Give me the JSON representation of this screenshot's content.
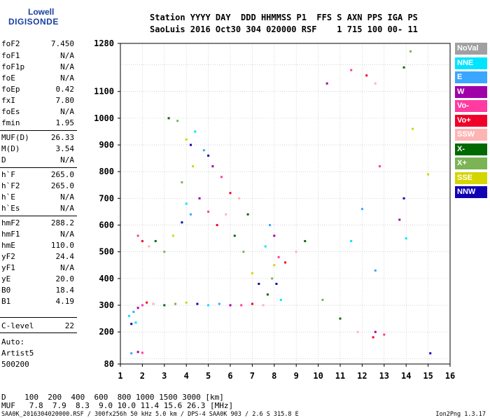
{
  "logo": {
    "line1": "Lowell",
    "line2": "DIGISONDE"
  },
  "header": {
    "line1": "Station YYYY DAY  DDD HHMMSS P1  FFS S AXN PPS IGA PS",
    "line2": "SaoLuis 2016 Oct30 304 020000 RSF    1 715 100 00- 11"
  },
  "params": [
    {
      "name": "foF2",
      "value": "7.450"
    },
    {
      "name": "foF1",
      "value": "N/A"
    },
    {
      "name": "foF1p",
      "value": "N/A"
    },
    {
      "name": "foE",
      "value": "N/A"
    },
    {
      "name": "foEp",
      "value": "0.42"
    },
    {
      "name": "fxI",
      "value": "7.80"
    },
    {
      "name": "foEs",
      "value": "N/A"
    },
    {
      "name": "fmin",
      "value": "1.95"
    },
    {
      "name": "MUF(D)",
      "value": "26.33"
    },
    {
      "name": "M(D)",
      "value": "3.54"
    },
    {
      "name": "D",
      "value": "N/A"
    },
    {
      "name": "h`F",
      "value": "265.0"
    },
    {
      "name": "h`F2",
      "value": "265.0"
    },
    {
      "name": "h`E",
      "value": "N/A"
    },
    {
      "name": "h`Es",
      "value": "N/A"
    },
    {
      "name": "hmF2",
      "value": "288.2"
    },
    {
      "name": "hmF1",
      "value": "N/A"
    },
    {
      "name": "hmE",
      "value": "110.0"
    },
    {
      "name": "yF2",
      "value": "24.4"
    },
    {
      "name": "yF1",
      "value": "N/A"
    },
    {
      "name": "yE",
      "value": "20.0"
    },
    {
      "name": "B0",
      "value": "18.4"
    },
    {
      "name": "B1",
      "value": "4.19"
    },
    {
      "name": "C-level",
      "value": "22"
    }
  ],
  "misc": {
    "line1": "Auto:",
    "line2": "Artist5",
    "line3": "500200"
  },
  "footer": {
    "d_row": "D    100  200  400  600  800 1000 1500 3000 [km]",
    "muf_row": "MUF   7.8  7.9  8.3  9.0 10.0 11.4 15.6 26.3 [MHz]",
    "file_line": "SAA0K_2016304020000.RSF / 300fx256h 50 kHz 5.0 km / DPS-4 SAA0K 903 / 2.6 S 315.8 E",
    "version": "Ion2Png 1.3.17"
  },
  "legend": [
    {
      "label": "NoVal",
      "color": "#a0a0a0"
    },
    {
      "label": "NNE",
      "color": "#00e5ff"
    },
    {
      "label": "E",
      "color": "#3aa6ff"
    },
    {
      "label": "W",
      "color": "#a000a8"
    },
    {
      "label": "Vo-",
      "color": "#ff3aa0"
    },
    {
      "label": "Vo+",
      "color": "#f00028"
    },
    {
      "label": "SSW",
      "color": "#ffb4b4"
    },
    {
      "label": "X-",
      "color": "#006a00"
    },
    {
      "label": "X+",
      "color": "#7ab454"
    },
    {
      "label": "SSE",
      "color": "#d4d400"
    },
    {
      "label": "NNW",
      "color": "#1000b4"
    }
  ],
  "chart_data": {
    "type": "scatter",
    "x_ticks": [
      1,
      2,
      3,
      4,
      5,
      6,
      7,
      8,
      9,
      10,
      11,
      12,
      13,
      14,
      15,
      16
    ],
    "y_ticks": [
      80,
      200,
      300,
      400,
      500,
      600,
      700,
      800,
      900,
      1000,
      1100,
      1280
    ],
    "xlim": [
      1,
      16
    ],
    "ylim": [
      80,
      1280
    ],
    "grid": true,
    "series": [
      {
        "points": [
          [
            1.4,
            260
          ],
          [
            1.6,
            275
          ],
          [
            1.8,
            290
          ],
          [
            2.0,
            300
          ],
          [
            2.2,
            310
          ],
          [
            2.5,
            305
          ],
          [
            3.0,
            300
          ],
          [
            3.5,
            305
          ],
          [
            4.0,
            310
          ],
          [
            4.5,
            305
          ],
          [
            5.0,
            300
          ],
          [
            5.5,
            305
          ],
          [
            6.0,
            300
          ],
          [
            6.5,
            300
          ],
          [
            7.0,
            305
          ],
          [
            7.5,
            300
          ],
          [
            7.7,
            340
          ],
          [
            7.9,
            400
          ],
          [
            8.0,
            450
          ],
          [
            8.1,
            380
          ],
          [
            8.3,
            320
          ]
        ]
      },
      {
        "points": [
          [
            1.8,
            560
          ],
          [
            2.0,
            540
          ],
          [
            2.3,
            520
          ],
          [
            2.6,
            540
          ],
          [
            3.0,
            500
          ],
          [
            3.4,
            560
          ],
          [
            3.8,
            610
          ],
          [
            4.0,
            680
          ],
          [
            4.2,
            640
          ],
          [
            4.6,
            700
          ],
          [
            5.0,
            650
          ],
          [
            5.4,
            600
          ],
          [
            5.8,
            640
          ],
          [
            6.2,
            560
          ],
          [
            6.6,
            500
          ],
          [
            7.0,
            420
          ],
          [
            7.3,
            380
          ],
          [
            7.6,
            520
          ],
          [
            7.8,
            600
          ],
          [
            8.0,
            560
          ],
          [
            8.2,
            480
          ],
          [
            8.5,
            460
          ],
          [
            9.0,
            500
          ],
          [
            9.4,
            540
          ]
        ]
      },
      {
        "points": [
          [
            3.2,
            1000
          ],
          [
            3.6,
            990
          ],
          [
            4.0,
            920
          ],
          [
            4.2,
            900
          ],
          [
            4.4,
            950
          ],
          [
            4.8,
            880
          ],
          [
            5.2,
            820
          ],
          [
            5.6,
            780
          ],
          [
            6.0,
            720
          ],
          [
            6.4,
            700
          ],
          [
            6.8,
            640
          ],
          [
            3.8,
            760
          ],
          [
            4.3,
            820
          ],
          [
            5.0,
            860
          ]
        ]
      },
      {
        "points": [
          [
            1.5,
            230
          ],
          [
            1.7,
            235
          ],
          [
            1.5,
            120
          ],
          [
            1.8,
            125
          ],
          [
            2.0,
            122
          ]
        ]
      },
      {
        "points": [
          [
            10.4,
            1130
          ],
          [
            11.5,
            1180
          ],
          [
            12.2,
            1160
          ],
          [
            12.6,
            1130
          ],
          [
            13.9,
            1190
          ],
          [
            14.2,
            1250
          ],
          [
            14.3,
            960
          ],
          [
            13.9,
            700
          ],
          [
            14.0,
            550
          ],
          [
            12.6,
            430
          ],
          [
            12.6,
            200
          ],
          [
            13.0,
            190
          ],
          [
            12.5,
            180
          ],
          [
            11.8,
            200
          ],
          [
            11.0,
            250
          ],
          [
            10.2,
            320
          ],
          [
            15.0,
            790
          ],
          [
            15.1,
            120
          ],
          [
            11.5,
            540
          ],
          [
            12.0,
            660
          ],
          [
            13.7,
            620
          ],
          [
            12.8,
            820
          ]
        ]
      }
    ]
  }
}
